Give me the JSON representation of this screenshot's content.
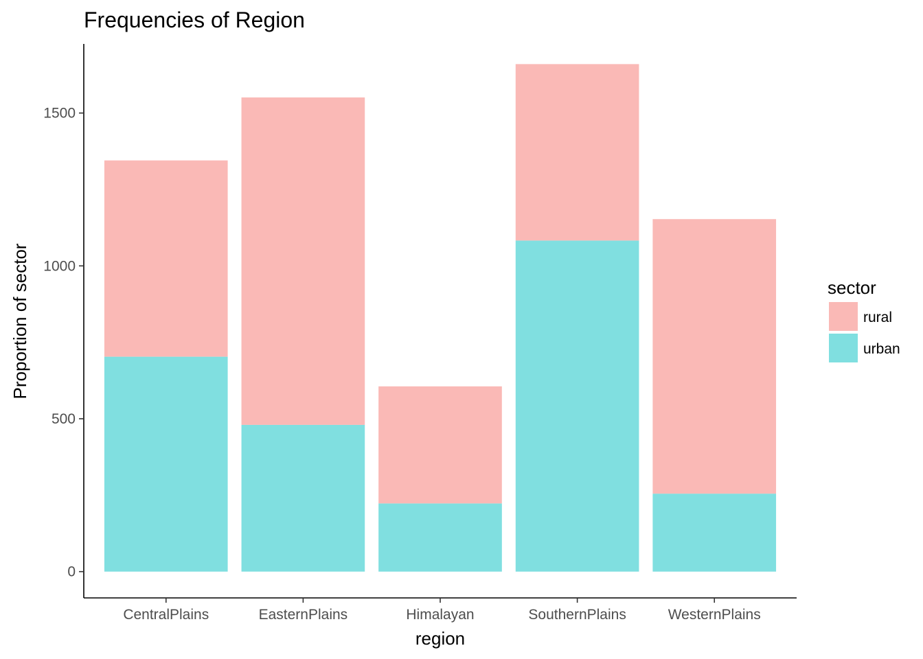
{
  "chart_data": {
    "type": "bar",
    "stacked": true,
    "title": "Frequencies of Region",
    "xlabel": "region",
    "ylabel": "Proportion of sector",
    "categories": [
      "CentralPlains",
      "EasternPlains",
      "Himalayan",
      "SouthernPlains",
      "WesternPlains"
    ],
    "series": [
      {
        "name": "urban",
        "color": "#80dfe0",
        "values": [
          703,
          480,
          223,
          1083,
          255
        ]
      },
      {
        "name": "rural",
        "color": "#fab9b6",
        "values": [
          642,
          1071,
          383,
          577,
          898
        ]
      }
    ],
    "yticks": [
      0,
      500,
      1000,
      1500
    ],
    "ylim": [
      -86,
      1726
    ],
    "grid": false,
    "legend": {
      "title": "sector",
      "position": "right",
      "entries": [
        "rural",
        "urban"
      ]
    }
  }
}
